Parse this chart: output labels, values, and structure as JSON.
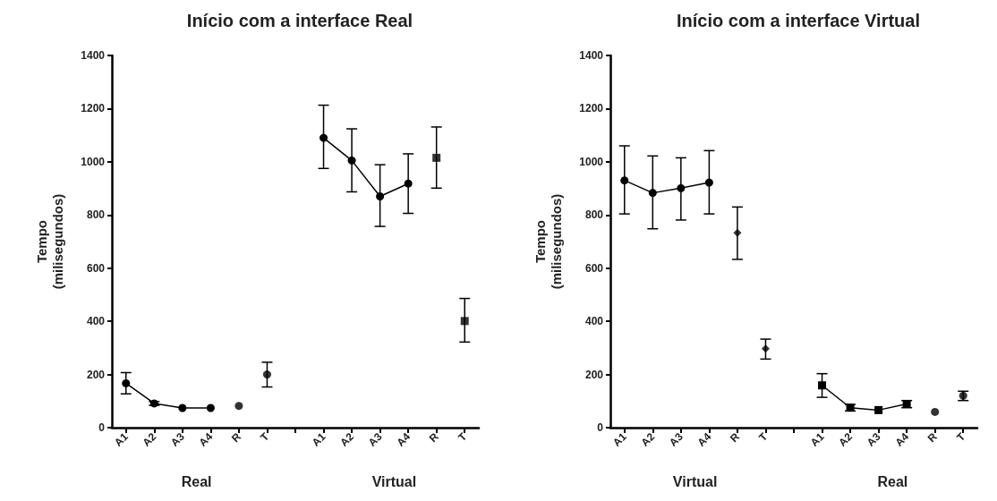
{
  "chart_data": [
    {
      "type": "scatter",
      "title": "Início com a interface Real",
      "ylabel": "Tempo\n(milisegundos)",
      "categories": [
        "A1",
        "A2",
        "A3",
        "A4",
        "R",
        "T",
        null,
        "A1",
        "A2",
        "A3",
        "A4",
        "R",
        "T"
      ],
      "ylim": [
        0,
        1400
      ],
      "yticks": [
        0,
        200,
        400,
        600,
        800,
        1000,
        1200,
        1400
      ],
      "grid": false,
      "marker": "circle",
      "annotations": [
        "Real",
        "Virtual"
      ],
      "series": [
        {
          "type": "line",
          "color": "#000000",
          "values": [
            167,
            91,
            74,
            74,
            null,
            null,
            null,
            null,
            null,
            null,
            null,
            null,
            null
          ],
          "errors": [
            [
              127,
              207
            ],
            [
              84,
              98
            ],
            null,
            null,
            null,
            null,
            null,
            null,
            null,
            null,
            null,
            null,
            null
          ]
        },
        {
          "color": "#000000",
          "values": [
            null,
            null,
            null,
            null,
            82,
            200,
            null,
            null,
            null,
            null,
            null,
            null,
            null
          ],
          "errors": [
            null,
            null,
            null,
            null,
            null,
            [
              153,
              246
            ],
            null,
            null,
            null,
            null,
            null,
            null,
            null
          ]
        },
        {
          "type": "line",
          "color": "#000000",
          "values": [
            null,
            null,
            null,
            null,
            null,
            null,
            null,
            1090,
            1005,
            870,
            918,
            null,
            null
          ],
          "errors": [
            null,
            null,
            null,
            null,
            null,
            null,
            null,
            [
              975,
              1213
            ],
            [
              887,
              1124
            ],
            [
              757,
              989
            ],
            [
              806,
              1030
            ],
            null,
            null
          ]
        },
        {
          "color": "#000000",
          "marker": "square",
          "values": [
            null,
            null,
            null,
            null,
            null,
            null,
            null,
            null,
            null,
            null,
            null,
            1015,
            401
          ],
          "errors": [
            null,
            null,
            null,
            null,
            null,
            null,
            null,
            null,
            null,
            null,
            null,
            [
              901,
              1131
            ],
            [
              322,
              486
            ]
          ]
        }
      ]
    },
    {
      "type": "scatter",
      "title": "Início com a interface Virtual",
      "ylabel": "Tempo\n(milisegundos)",
      "categories": [
        "A1",
        "A2",
        "A3",
        "A4",
        "R",
        "T",
        null,
        "A1",
        "A2",
        "A3",
        "A4",
        "R",
        "T"
      ],
      "ylim": [
        0,
        1400
      ],
      "yticks": [
        0,
        200,
        400,
        600,
        800,
        1000,
        1200,
        1400
      ],
      "grid": false,
      "marker": "circle",
      "annotations": [
        "Virtual",
        "Real"
      ],
      "series": [
        {
          "type": "line",
          "color": "#000000",
          "values": [
            930,
            883,
            901,
            922,
            null,
            null,
            null,
            null,
            null,
            null,
            null,
            null,
            null
          ],
          "errors": [
            [
              804,
              1060
            ],
            [
              748,
              1022
            ],
            [
              781,
              1015
            ],
            [
              804,
              1042
            ],
            null,
            null,
            null,
            null,
            null,
            null,
            null,
            null,
            null
          ]
        },
        {
          "color": "#000000",
          "marker": "diamond",
          "values": [
            null,
            null,
            null,
            null,
            733,
            297,
            null,
            null,
            null,
            null,
            null,
            null,
            null
          ],
          "errors": [
            null,
            null,
            null,
            null,
            [
              633,
              830
            ],
            [
              258,
              333
            ],
            null,
            null,
            null,
            null,
            null,
            null,
            null
          ]
        },
        {
          "type": "line",
          "color": "#000000",
          "marker": "square",
          "values": [
            null,
            null,
            null,
            null,
            null,
            null,
            null,
            159,
            75,
            66,
            89,
            null,
            null
          ],
          "errors": [
            null,
            null,
            null,
            null,
            null,
            null,
            null,
            [
              114,
              203
            ],
            [
              63,
              87
            ],
            null,
            [
              75,
              102
            ],
            null,
            null
          ]
        },
        {
          "color": "#000000",
          "values": [
            null,
            null,
            null,
            null,
            null,
            null,
            null,
            null,
            null,
            null,
            null,
            59,
            120
          ],
          "errors": [
            null,
            null,
            null,
            null,
            null,
            null,
            null,
            null,
            null,
            null,
            null,
            null,
            [
              102,
              137
            ]
          ]
        }
      ]
    }
  ]
}
